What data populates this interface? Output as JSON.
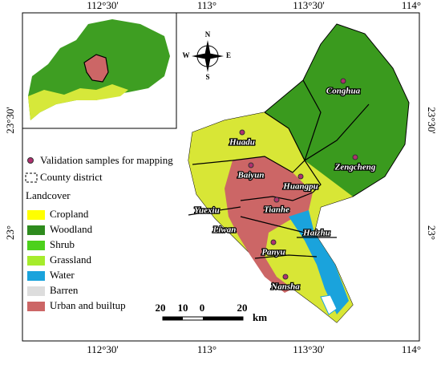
{
  "map": {
    "lon_labels": [
      "112°30'",
      "113°",
      "113°30'",
      "114°"
    ],
    "lat_labels": [
      "23°30'",
      "23°"
    ],
    "compass": [
      "N",
      "S",
      "W",
      "E"
    ],
    "legend": {
      "samples": "Validation samples for mapping",
      "district": "County district",
      "landcover_title": "Landcover",
      "landcover": [
        {
          "name": "Cropland",
          "color": "#ffff00"
        },
        {
          "name": "Woodland",
          "color": "#2e8b1e"
        },
        {
          "name": "Shrub",
          "color": "#4cd11c"
        },
        {
          "name": "Grassland",
          "color": "#a6ec2c"
        },
        {
          "name": "Water",
          "color": "#1aa3dc"
        },
        {
          "name": "Barren",
          "color": "#dddddd"
        },
        {
          "name": "Urban and builtup",
          "color": "#cc6666"
        }
      ]
    },
    "districts": [
      "Conghua",
      "Huadu",
      "Zengcheng",
      "Baiyun",
      "Huangpu",
      "Yuexiu",
      "Tianhe",
      "Liwan",
      "Haizhu",
      "Panyu",
      "Nansha"
    ],
    "scale": [
      "20",
      "10",
      "0",
      "20",
      "km"
    ]
  }
}
